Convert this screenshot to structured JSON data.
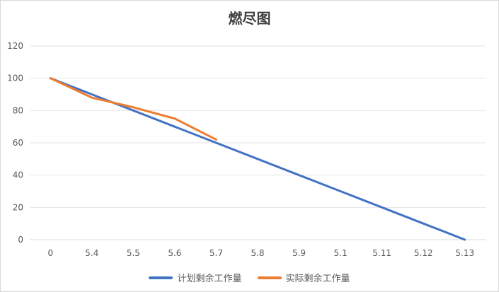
{
  "chart_data": {
    "type": "line",
    "title": "燃尽图",
    "categories": [
      "0",
      "5.4",
      "5.5",
      "5.6",
      "5.7",
      "5.8",
      "5.9",
      "5.1",
      "5.11",
      "5.12",
      "5.13"
    ],
    "ylim": [
      0,
      120
    ],
    "yticks": [
      0,
      20,
      40,
      60,
      80,
      100,
      120
    ],
    "grid": true,
    "legend_position": "bottom",
    "series": [
      {
        "name": "计划剩余工作量",
        "color": "#4472C4",
        "values": [
          100,
          90,
          80,
          70,
          60,
          50,
          40,
          30,
          20,
          10,
          0
        ]
      },
      {
        "name": "实际剩余工作量",
        "color": "#ED7D31",
        "values": [
          100,
          88,
          82,
          75,
          62,
          null,
          null,
          null,
          null,
          null,
          null
        ]
      }
    ]
  }
}
